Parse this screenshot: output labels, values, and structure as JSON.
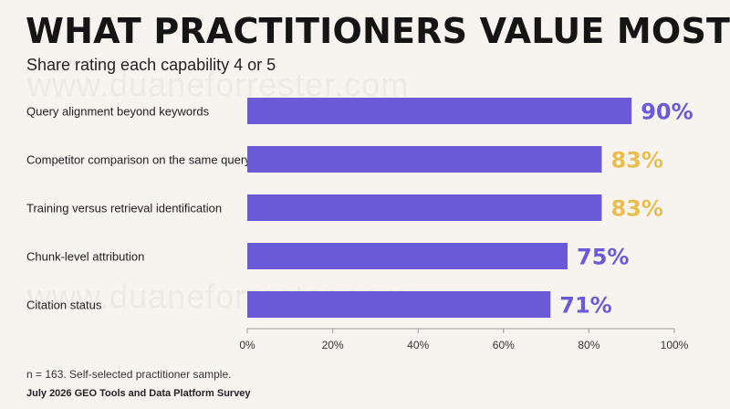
{
  "watermark": "www.duaneforrester.com",
  "colors": {
    "bar": "#6b5ad8",
    "label_top": "#6b5ad8",
    "label_mid": "#e8be50",
    "axis": "#9a9a9a",
    "background": "#f7f4ef"
  },
  "chart_data": {
    "type": "bar",
    "orientation": "horizontal",
    "title": "WHAT PRACTITIONERS VALUE MOST",
    "subtitle": "Share rating each capability 4 or 5",
    "categories": [
      "Query alignment beyond keywords",
      "Competitor comparison on the same query",
      "Training versus retrieval identification",
      "Chunk-level attribution",
      "Citation status"
    ],
    "values": [
      90,
      83,
      83,
      75,
      71
    ],
    "value_labels": [
      "90%",
      "83%",
      "83%",
      "75%",
      "71%"
    ],
    "value_label_colors": [
      "#6b5ad8",
      "#e8be50",
      "#e8be50",
      "#6b5ad8",
      "#6b5ad8"
    ],
    "xlim": [
      0,
      100
    ],
    "xticks": [
      0,
      20,
      40,
      60,
      80,
      100
    ],
    "xtick_labels": [
      "0%",
      "20%",
      "40%",
      "60%",
      "80%",
      "100%"
    ],
    "grid": false,
    "legend": "none"
  },
  "footer": {
    "note": "n = 163. Self-selected practitioner sample.",
    "source": "July 2026 GEO Tools and Data Platform Survey"
  }
}
